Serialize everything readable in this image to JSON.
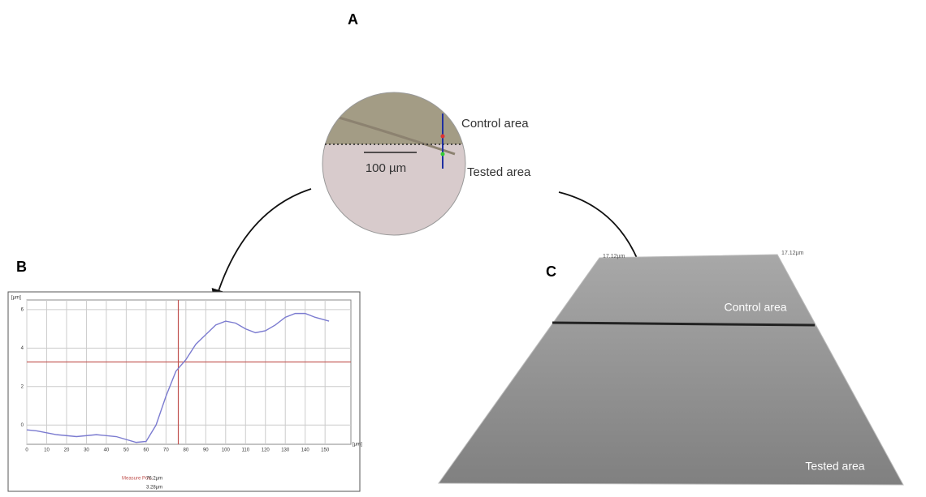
{
  "panels": {
    "a": {
      "label": "A",
      "control": "Control area",
      "tested": "Tested area",
      "scale": "100 µm"
    },
    "b": {
      "label": "B"
    },
    "c": {
      "label": "C",
      "control": "Control area",
      "tested": "Tested area",
      "corner_left": "17.12µm",
      "corner_right": "17.12µm"
    }
  },
  "chart_data": {
    "type": "line",
    "x": [
      0,
      5,
      15,
      25,
      35,
      45,
      55,
      60,
      65,
      70,
      75,
      80,
      85,
      95,
      100,
      105,
      110,
      115,
      120,
      125,
      130,
      135,
      140,
      145,
      152
    ],
    "series": [
      {
        "color": "#7b7bd0",
        "values": [
          -0.25,
          -0.3,
          -0.5,
          -0.6,
          -0.5,
          -0.6,
          -0.9,
          -0.85,
          0,
          1.5,
          2.8,
          3.4,
          4.2,
          5.2,
          5.4,
          5.3,
          5.0,
          4.8,
          4.9,
          5.2,
          5.6,
          5.8,
          5.8,
          5.6,
          5.4
        ]
      }
    ],
    "xlim": [
      0,
      163
    ],
    "ylim": [
      -1,
      6.5
    ],
    "xticks": [
      0,
      10,
      20,
      30,
      40,
      50,
      60,
      70,
      80,
      90,
      100,
      110,
      120,
      130,
      140,
      150
    ],
    "yticks": [
      0,
      2,
      4,
      6
    ],
    "grid": true,
    "x_unit": "[µm]",
    "y_unit": "[µm]",
    "cursor": {
      "x": 76.2,
      "y": 3.28,
      "color": "#c0504d",
      "label": "Measure Pos.:",
      "x_label": "76.2µm",
      "y_label": "3.28µm"
    }
  }
}
